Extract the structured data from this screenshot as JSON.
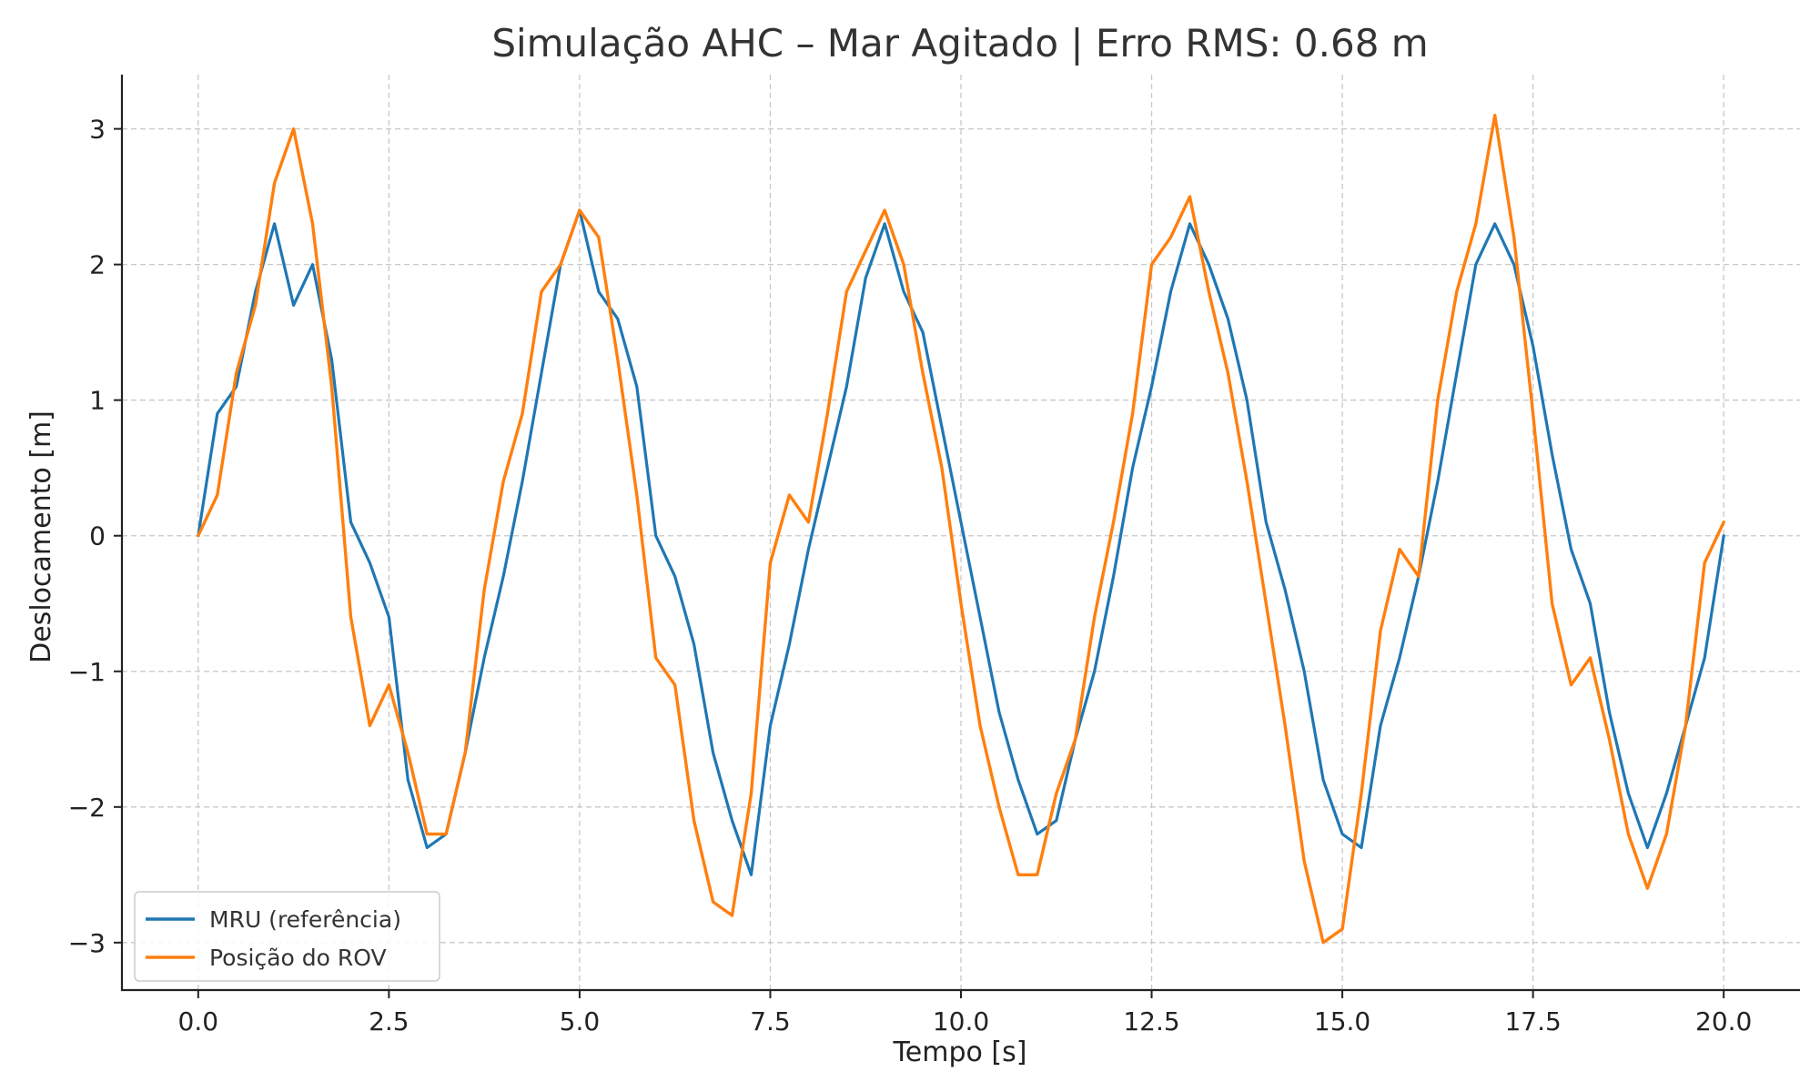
{
  "chart_data": {
    "type": "line",
    "title": "Simulação AHC – Mar Agitado | Erro RMS: 0.68 m",
    "xlabel": "Tempo [s]",
    "ylabel": "Deslocamento [m]",
    "xlim": [
      -1.0,
      21.0
    ],
    "ylim": [
      -3.35,
      3.4
    ],
    "xticks": [
      0.0,
      2.5,
      5.0,
      7.5,
      10.0,
      12.5,
      15.0,
      17.5,
      20.0
    ],
    "xtick_labels": [
      "0.0",
      "2.5",
      "5.0",
      "7.5",
      "10.0",
      "12.5",
      "15.0",
      "17.5",
      "20.0"
    ],
    "yticks": [
      -3,
      -2,
      -1,
      0,
      1,
      2,
      3
    ],
    "ytick_labels": [
      "−3",
      "−2",
      "−1",
      "0",
      "1",
      "2",
      "3"
    ],
    "grid": true,
    "legend_position": "bottom-left",
    "series": [
      {
        "name": "MRU (referência)",
        "color": "#1f77b4",
        "x": [
          0.0,
          0.25,
          0.5,
          0.75,
          1.0,
          1.25,
          1.5,
          1.75,
          2.0,
          2.25,
          2.5,
          2.75,
          3.0,
          3.25,
          3.5,
          3.75,
          4.0,
          4.25,
          4.5,
          4.75,
          5.0,
          5.25,
          5.5,
          5.75,
          6.0,
          6.25,
          6.5,
          6.75,
          7.0,
          7.25,
          7.5,
          7.75,
          8.0,
          8.25,
          8.5,
          8.75,
          9.0,
          9.25,
          9.5,
          9.75,
          10.0,
          10.25,
          10.5,
          10.75,
          11.0,
          11.25,
          11.5,
          11.75,
          12.0,
          12.25,
          12.5,
          12.75,
          13.0,
          13.25,
          13.5,
          13.75,
          14.0,
          14.25,
          14.5,
          14.75,
          15.0,
          15.25,
          15.5,
          15.75,
          16.0,
          16.25,
          16.5,
          16.75,
          17.0,
          17.25,
          17.5,
          17.75,
          18.0,
          18.25,
          18.5,
          18.75,
          19.0,
          19.25,
          19.5,
          19.75,
          20.0
        ],
        "y": [
          0.0,
          0.9,
          1.1,
          1.8,
          2.3,
          1.7,
          2.0,
          1.3,
          0.1,
          -0.2,
          -0.6,
          -1.8,
          -2.3,
          -2.2,
          -1.6,
          -0.9,
          -0.3,
          0.4,
          1.2,
          2.0,
          2.4,
          1.8,
          1.6,
          1.1,
          0.0,
          -0.3,
          -0.8,
          -1.6,
          -2.1,
          -2.5,
          -1.4,
          -0.8,
          -0.1,
          0.5,
          1.1,
          1.9,
          2.3,
          1.8,
          1.5,
          0.8,
          0.1,
          -0.6,
          -1.3,
          -1.8,
          -2.2,
          -2.1,
          -1.5,
          -1.0,
          -0.3,
          0.5,
          1.1,
          1.8,
          2.3,
          2.0,
          1.6,
          1.0,
          0.1,
          -0.4,
          -1.0,
          -1.8,
          -2.2,
          -2.3,
          -1.4,
          -0.9,
          -0.3,
          0.4,
          1.2,
          2.0,
          2.3,
          2.0,
          1.4,
          0.6,
          -0.1,
          -0.5,
          -1.3,
          -1.9,
          -2.3,
          -1.9,
          -1.4,
          -0.9,
          0.0
        ]
      },
      {
        "name": "Posição do ROV",
        "color": "#ff7f0e",
        "x": [
          0.0,
          0.25,
          0.5,
          0.75,
          1.0,
          1.25,
          1.5,
          1.75,
          2.0,
          2.25,
          2.5,
          2.75,
          3.0,
          3.25,
          3.5,
          3.75,
          4.0,
          4.25,
          4.5,
          4.75,
          5.0,
          5.25,
          5.5,
          5.75,
          6.0,
          6.25,
          6.5,
          6.75,
          7.0,
          7.25,
          7.5,
          7.75,
          8.0,
          8.25,
          8.5,
          8.75,
          9.0,
          9.25,
          9.5,
          9.75,
          10.0,
          10.25,
          10.5,
          10.75,
          11.0,
          11.25,
          11.5,
          11.75,
          12.0,
          12.25,
          12.5,
          12.75,
          13.0,
          13.25,
          13.5,
          13.75,
          14.0,
          14.25,
          14.5,
          14.75,
          15.0,
          15.25,
          15.5,
          15.75,
          16.0,
          16.25,
          16.5,
          16.75,
          17.0,
          17.25,
          17.5,
          17.75,
          18.0,
          18.25,
          18.5,
          18.75,
          19.0,
          19.25,
          19.5,
          19.75,
          20.0
        ],
        "y": [
          0.0,
          0.3,
          1.2,
          1.7,
          2.6,
          3.0,
          2.3,
          1.1,
          -0.6,
          -1.4,
          -1.1,
          -1.6,
          -2.2,
          -2.2,
          -1.6,
          -0.4,
          0.4,
          0.9,
          1.8,
          2.0,
          2.4,
          2.2,
          1.3,
          0.3,
          -0.9,
          -1.1,
          -2.1,
          -2.7,
          -2.8,
          -1.9,
          -0.2,
          0.3,
          0.1,
          0.9,
          1.8,
          2.1,
          2.4,
          2.0,
          1.2,
          0.5,
          -0.5,
          -1.4,
          -2.0,
          -2.5,
          -2.5,
          -1.9,
          -1.5,
          -0.6,
          0.1,
          0.9,
          2.0,
          2.2,
          2.5,
          1.8,
          1.2,
          0.4,
          -0.5,
          -1.4,
          -2.4,
          -3.0,
          -2.9,
          -1.9,
          -0.7,
          -0.1,
          -0.3,
          1.0,
          1.8,
          2.3,
          3.1,
          2.2,
          0.9,
          -0.5,
          -1.1,
          -0.9,
          -1.5,
          -2.2,
          -2.6,
          -2.2,
          -1.4,
          -0.2,
          0.1
        ]
      }
    ]
  }
}
